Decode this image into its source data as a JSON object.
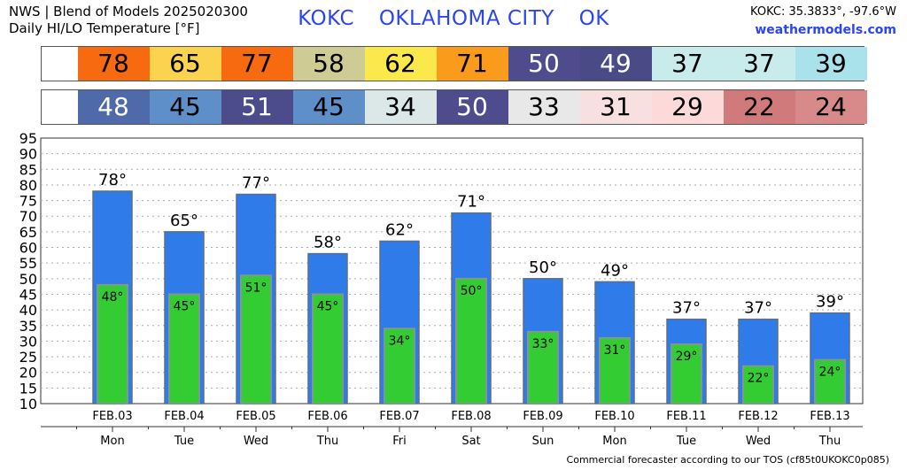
{
  "header": {
    "line1": "NWS | Blend of Models 2025020300",
    "line2": "Daily HI/LO Temperature [°F]",
    "station_id": "KOKC",
    "station_city": "OKLAHOMA CITY",
    "station_state": "OK",
    "coords": "KOKC: 35.3833°, -97.6°W",
    "site": "weathermodels.com"
  },
  "footer": "Commercial forecaster according to our TOS (cf85t0UKOKC0p085)",
  "strips": {
    "hi": [
      {
        "value": "78",
        "bg": "#f86a10",
        "fg": "#000000"
      },
      {
        "value": "65",
        "bg": "#fbd34f",
        "fg": "#000000"
      },
      {
        "value": "77",
        "bg": "#f86a10",
        "fg": "#000000"
      },
      {
        "value": "58",
        "bg": "#cfcb94",
        "fg": "#000000"
      },
      {
        "value": "62",
        "bg": "#fbe84a",
        "fg": "#000000"
      },
      {
        "value": "71",
        "bg": "#fb9b1c",
        "fg": "#000000"
      },
      {
        "value": "50",
        "bg": "#4f4c8e",
        "fg": "#ffffff"
      },
      {
        "value": "49",
        "bg": "#4a4a86",
        "fg": "#ffffff"
      },
      {
        "value": "37",
        "bg": "#c8ecec",
        "fg": "#000000"
      },
      {
        "value": "37",
        "bg": "#c8ecec",
        "fg": "#000000"
      },
      {
        "value": "39",
        "bg": "#a9e2ea",
        "fg": "#000000"
      }
    ],
    "lo": [
      {
        "value": "48",
        "bg": "#4f6aa8",
        "fg": "#ffffff"
      },
      {
        "value": "45",
        "bg": "#5e8fc8",
        "fg": "#000000"
      },
      {
        "value": "51",
        "bg": "#4c4c8c",
        "fg": "#ffffff"
      },
      {
        "value": "45",
        "bg": "#5e8fc8",
        "fg": "#000000"
      },
      {
        "value": "34",
        "bg": "#dce8e8",
        "fg": "#000000"
      },
      {
        "value": "50",
        "bg": "#4f4c8e",
        "fg": "#ffffff"
      },
      {
        "value": "33",
        "bg": "#e8e8e8",
        "fg": "#000000"
      },
      {
        "value": "31",
        "bg": "#f8e0e0",
        "fg": "#000000"
      },
      {
        "value": "29",
        "bg": "#fcdada",
        "fg": "#000000"
      },
      {
        "value": "22",
        "bg": "#d07a7c",
        "fg": "#000000"
      },
      {
        "value": "24",
        "bg": "#d88a8a",
        "fg": "#000000"
      }
    ]
  },
  "colors": {
    "hi_bar": "#2f7bea",
    "hi_bar_border": "#5b6e8a",
    "lo_bar": "#33cc33",
    "lo_bar_border": "#7f9a8a",
    "grid": "#aaaaaa"
  },
  "chart_data": {
    "type": "bar",
    "title": "Daily HI/LO Temperature [°F]",
    "categories": [
      "FEB.03",
      "FEB.04",
      "FEB.05",
      "FEB.06",
      "FEB.07",
      "FEB.08",
      "FEB.09",
      "FEB.10",
      "FEB.11",
      "FEB.12",
      "FEB.13"
    ],
    "days": [
      "Mon",
      "Tue",
      "Wed",
      "Thu",
      "Fri",
      "Sat",
      "Sun",
      "Mon",
      "Tue",
      "Wed",
      "Thu"
    ],
    "series": [
      {
        "values": [
          78,
          65,
          77,
          58,
          62,
          71,
          50,
          49,
          37,
          37,
          39
        ]
      },
      {
        "values": [
          48,
          45,
          51,
          45,
          34,
          50,
          33,
          31,
          29,
          22,
          24
        ]
      }
    ],
    "ylim": [
      10,
      95
    ],
    "yticks": [
      10,
      15,
      20,
      25,
      30,
      35,
      40,
      45,
      50,
      55,
      60,
      65,
      70,
      75,
      80,
      85,
      90,
      95
    ],
    "grid": true,
    "legend": "none"
  }
}
